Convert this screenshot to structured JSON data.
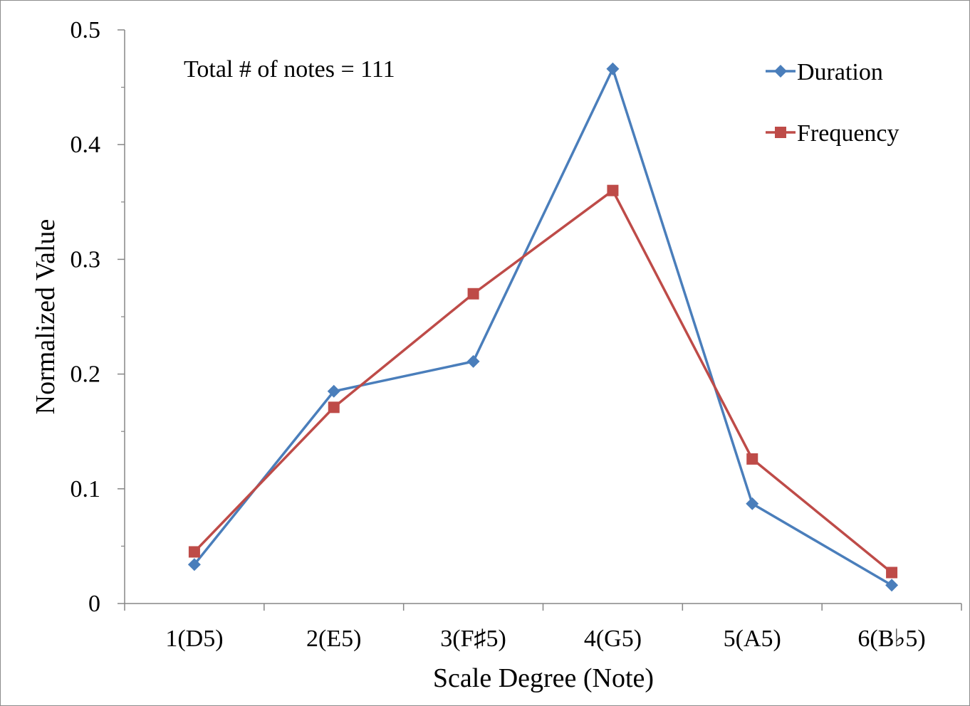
{
  "chart_data": {
    "type": "line",
    "categories": [
      "1(D5)",
      "2(E5)",
      "3(F♯5)",
      "4(G5)",
      "5(A5)",
      "6(B♭5)"
    ],
    "series": [
      {
        "name": "Duration",
        "values": [
          0.034,
          0.185,
          0.211,
          0.466,
          0.087,
          0.016
        ],
        "color": "#4a7ebb",
        "marker": "diamond"
      },
      {
        "name": "Frequency",
        "values": [
          0.045,
          0.171,
          0.27,
          0.36,
          0.126,
          0.027
        ],
        "color": "#be4b48",
        "marker": "square"
      }
    ],
    "xlabel": "Scale Degree (Note)",
    "ylabel": "Normalized Value",
    "ylim": [
      0,
      0.5
    ],
    "yticks": [
      "0",
      "0.1",
      "0.2",
      "0.3",
      "0.4",
      "0.5"
    ],
    "annotation": "Total # of notes = 111",
    "grid": false,
    "legend_position": "top-right"
  }
}
